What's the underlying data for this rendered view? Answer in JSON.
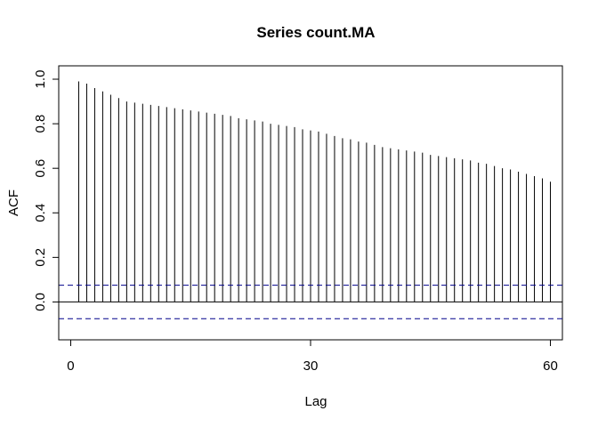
{
  "chart_data": {
    "type": "bar",
    "title": "Series  count.MA",
    "xlabel": "Lag",
    "ylabel": "ACF",
    "xlim": [
      -1.5,
      61.5
    ],
    "ylim": [
      -0.17,
      1.06
    ],
    "x_ticks": [
      0,
      30,
      60
    ],
    "x_tick_labels": [
      "0",
      "30",
      "60"
    ],
    "y_ticks": [
      0,
      0.2,
      0.4,
      0.6,
      0.8,
      1
    ],
    "y_tick_labels": [
      "0.0",
      "0.2",
      "0.4",
      "0.6",
      "0.8",
      "1.0"
    ],
    "confidence_limit": 0.075,
    "lags": [
      1,
      2,
      3,
      4,
      5,
      6,
      7,
      8,
      9,
      10,
      11,
      12,
      13,
      14,
      15,
      16,
      17,
      18,
      19,
      20,
      21,
      22,
      23,
      24,
      25,
      26,
      27,
      28,
      29,
      30,
      31,
      32,
      33,
      34,
      35,
      36,
      37,
      38,
      39,
      40,
      41,
      42,
      43,
      44,
      45,
      46,
      47,
      48,
      49,
      50,
      51,
      52,
      53,
      54,
      55,
      56,
      57,
      58,
      59,
      60
    ],
    "values": [
      0.99,
      0.98,
      0.96,
      0.945,
      0.93,
      0.915,
      0.9,
      0.895,
      0.89,
      0.885,
      0.88,
      0.875,
      0.87,
      0.865,
      0.86,
      0.855,
      0.85,
      0.845,
      0.84,
      0.835,
      0.825,
      0.82,
      0.815,
      0.81,
      0.8,
      0.795,
      0.79,
      0.785,
      0.775,
      0.77,
      0.765,
      0.755,
      0.745,
      0.735,
      0.73,
      0.72,
      0.715,
      0.705,
      0.695,
      0.69,
      0.685,
      0.68,
      0.675,
      0.67,
      0.66,
      0.655,
      0.65,
      0.645,
      0.64,
      0.635,
      0.625,
      0.62,
      0.61,
      0.6,
      0.595,
      0.585,
      0.575,
      0.565,
      0.555,
      0.54
    ],
    "colors": {
      "lines": "#000000",
      "confidence": "#00008B"
    }
  }
}
